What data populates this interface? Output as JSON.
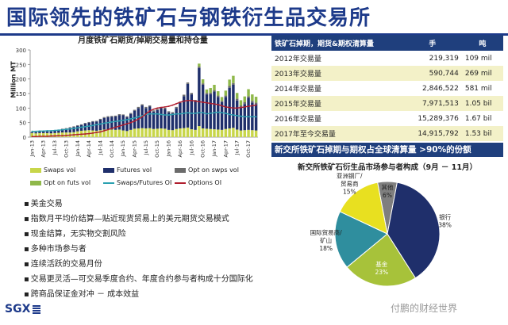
{
  "page_title": "国际领先的铁矿石与钢铁衍生品交易所",
  "left_chart": {
    "title": "月度铁矿石期货/掉期交易量和持仓量",
    "ylabel": "Million MT"
  },
  "chart_data": [
    {
      "type": "bar",
      "title": "月度铁矿石期货/掉期交易量和持仓量",
      "ylabel": "Million MT",
      "ylim": [
        0,
        300
      ],
      "yticks": [
        0,
        50,
        100,
        150,
        200,
        250,
        300
      ],
      "x_tick_labels": [
        "Jan-13",
        "Apr-13",
        "Jul-13",
        "Oct-13",
        "Jan-14",
        "Apr-14",
        "Jul-14",
        "Oct-14",
        "Jan-15",
        "Apr-15",
        "Jul-15",
        "Oct-15",
        "Jan-16",
        "Apr-16",
        "Jul-16",
        "Oct-16",
        "Jan-17",
        "Apr-17",
        "Jul-17",
        "Oct-17"
      ],
      "stacked": true,
      "series": [
        {
          "name": "Swaps vol",
          "kind": "bar",
          "color": "#c8d64a",
          "values": [
            14,
            13,
            14,
            14,
            14,
            13,
            14,
            15,
            16,
            16,
            16,
            17,
            20,
            22,
            23,
            24,
            23,
            22,
            24,
            26,
            27,
            26,
            25,
            26,
            23,
            21,
            25,
            29,
            30,
            31,
            30,
            31,
            28,
            29,
            30,
            29,
            25,
            24,
            28,
            30,
            31,
            33,
            27,
            25,
            38,
            30,
            29,
            28,
            27,
            26,
            25,
            28,
            30,
            32,
            26,
            23,
            24,
            25,
            24,
            23
          ]
        },
        {
          "name": "Futures vol",
          "kind": "bar",
          "color": "#1f2f6b",
          "values": [
            3,
            4,
            5,
            6,
            6,
            7,
            8,
            10,
            12,
            13,
            16,
            18,
            19,
            20,
            24,
            26,
            30,
            32,
            36,
            40,
            42,
            44,
            46,
            50,
            52,
            48,
            55,
            62,
            70,
            78,
            70,
            74,
            60,
            64,
            70,
            68,
            60,
            58,
            72,
            88,
            110,
            150,
            120,
            98,
            200,
            150,
            118,
            120,
            130,
            112,
            95,
            110,
            140,
            148,
            100,
            80,
            90,
            110,
            95,
            90
          ]
        },
        {
          "name": "Opt on swps vol",
          "kind": "bar",
          "color": "#6b6b6b",
          "values": [
            1,
            1,
            1,
            1,
            1,
            1,
            1,
            1,
            1,
            2,
            2,
            2,
            2,
            2,
            2,
            2,
            2,
            2,
            3,
            3,
            3,
            3,
            3,
            3,
            3,
            3,
            3,
            3,
            4,
            4,
            4,
            4,
            4,
            4,
            4,
            4,
            4,
            4,
            4,
            4,
            5,
            5,
            5,
            5,
            5,
            5,
            5,
            5,
            5,
            5,
            5,
            5,
            6,
            6,
            6,
            6,
            6,
            6,
            6,
            6
          ]
        },
        {
          "name": "Opt on futs vol",
          "kind": "bar",
          "color": "#8fb84a",
          "values": [
            0,
            0,
            0,
            0,
            0,
            0,
            0,
            0,
            0,
            0,
            0,
            0,
            0,
            0,
            0,
            0,
            0,
            0,
            0,
            0,
            0,
            0,
            0,
            0,
            0,
            0,
            0,
            0,
            0,
            0,
            0,
            0,
            0,
            0,
            0,
            0,
            0,
            0,
            0,
            0,
            0,
            0,
            0,
            0,
            10,
            14,
            12,
            16,
            18,
            15,
            13,
            17,
            22,
            25,
            20,
            18,
            20,
            24,
            22,
            20
          ]
        },
        {
          "name": "Swaps/Futures OI",
          "kind": "line",
          "color": "#2aa0b0",
          "values": [
            20,
            20,
            21,
            21,
            22,
            22,
            23,
            24,
            25,
            27,
            28,
            30,
            32,
            34,
            36,
            38,
            40,
            43,
            45,
            48,
            50,
            52,
            54,
            56,
            58,
            60,
            63,
            66,
            70,
            74,
            78,
            80,
            80,
            80,
            78,
            76,
            76,
            78,
            80,
            80,
            82,
            84,
            82,
            82,
            84,
            84,
            80,
            82,
            84,
            86,
            84,
            82,
            78,
            76,
            74,
            72,
            70,
            70,
            70,
            70
          ]
        },
        {
          "name": "Options OI",
          "kind": "line",
          "color": "#b01e2e",
          "values": [
            2,
            2,
            3,
            3,
            3,
            4,
            4,
            5,
            5,
            6,
            7,
            8,
            9,
            10,
            11,
            12,
            14,
            16,
            18,
            22,
            26,
            30,
            34,
            38,
            42,
            46,
            50,
            55,
            62,
            70,
            80,
            90,
            96,
            100,
            102,
            104,
            106,
            110,
            115,
            120,
            124,
            126,
            126,
            124,
            122,
            120,
            118,
            116,
            114,
            112,
            108,
            104,
            102,
            100,
            100,
            102,
            104,
            106,
            108,
            110
          ]
        }
      ]
    },
    {
      "type": "pie",
      "title": "新交所铁矿石衍生品市场参与者构成（9月 － 11月）",
      "slices": [
        {
          "label": "银行",
          "value": 38,
          "color": "#1f2f6b"
        },
        {
          "label": "基金",
          "value": 23,
          "color": "#a7c23a"
        },
        {
          "label": "国际贸易商/矿山",
          "value": 18,
          "color": "#2f8e9e"
        },
        {
          "label": "亚洲钢厂/贸易商",
          "value": 15,
          "color": "#e8e020"
        },
        {
          "label": "其他",
          "value": 6,
          "color": "#7f7f7f"
        }
      ]
    }
  ],
  "legend": [
    {
      "label": "Swaps vol",
      "color": "#c8d64a",
      "kind": "box"
    },
    {
      "label": "Futures vol",
      "color": "#1f2f6b",
      "kind": "box"
    },
    {
      "label": "Opt on swps vol",
      "color": "#6b6b6b",
      "kind": "box"
    },
    {
      "label": "Opt on futs vol",
      "color": "#8fb84a",
      "kind": "box"
    },
    {
      "label": "Swaps/Futures OI",
      "color": "#2aa0b0",
      "kind": "line"
    },
    {
      "label": "Options OI",
      "color": "#b01e2e",
      "kind": "line"
    }
  ],
  "bullets": [
    "美金交易",
    "指数月平均价结算—贴近现货贸易上的美元期货交易模式",
    "现金结算，无实物交割风险",
    "多种市场参与者",
    "连续活跃的交易月份",
    "交易更灵活—可交易季度合约、年度合约参与者构成十分国际化",
    "跨商品保证金对冲 － 成本效益"
  ],
  "table": {
    "headers": [
      "铁矿石掉期，期货&期权清算量",
      "手",
      "吨"
    ],
    "rows": [
      [
        "2012年交易量",
        "219,319",
        "109 mil"
      ],
      [
        "2013年交易量",
        "590,744",
        "269 mil"
      ],
      [
        "2014年交易量",
        "2,846,522",
        "581 mil"
      ],
      [
        "2015年交易量",
        "7,971,513",
        "1.05 bil"
      ],
      [
        "2016年交易量",
        "15,289,376",
        "1.67 bil"
      ],
      [
        "2017年至今交易量",
        "14,915,792",
        "1.53 bil"
      ]
    ]
  },
  "banner": "新交所铁矿石掉期与期权占全球清算量 >90%的份额",
  "pie_title": "新交所铁矿石衍生品市场参与者构成（9月 － 11月）",
  "logo_text": "SGX",
  "watermark": "付鹏的财经世界"
}
